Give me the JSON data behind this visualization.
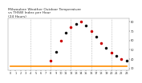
{
  "title": "Milwaukee Weather Outdoor Temperature vs THSW Index per Hour (24 Hours)",
  "hours": [
    0,
    1,
    2,
    3,
    4,
    5,
    6,
    7,
    8,
    9,
    10,
    11,
    12,
    13,
    14,
    15,
    16,
    17,
    18,
    19,
    20,
    21,
    22,
    23
  ],
  "temp": [
    32,
    32,
    32,
    32,
    32,
    32,
    32,
    32,
    32,
    32,
    32,
    32,
    32,
    32,
    32,
    32,
    32,
    32,
    32,
    32,
    32,
    32,
    32,
    32
  ],
  "thsw": [
    null,
    null,
    null,
    null,
    null,
    null,
    null,
    null,
    38,
    48,
    60,
    68,
    74,
    78,
    80,
    76,
    70,
    64,
    57,
    52,
    47,
    43,
    40,
    38
  ],
  "temp_color": "#FF8C00",
  "thsw_colors_alt": [
    "#CC0000",
    "#111111"
  ],
  "ylim_min": 28,
  "ylim_max": 84,
  "yticks": [
    30,
    40,
    50,
    60,
    70,
    80
  ],
  "ytick_labels": [
    "30",
    "40",
    "50",
    "60",
    "70",
    "80"
  ],
  "bg_color": "#ffffff",
  "grid_color": "#aaaaaa",
  "title_color": "#333333",
  "title_fontsize": 3.2,
  "tick_fontsize": 2.5,
  "temp_linewidth": 1.2,
  "dot_size": 1.5
}
